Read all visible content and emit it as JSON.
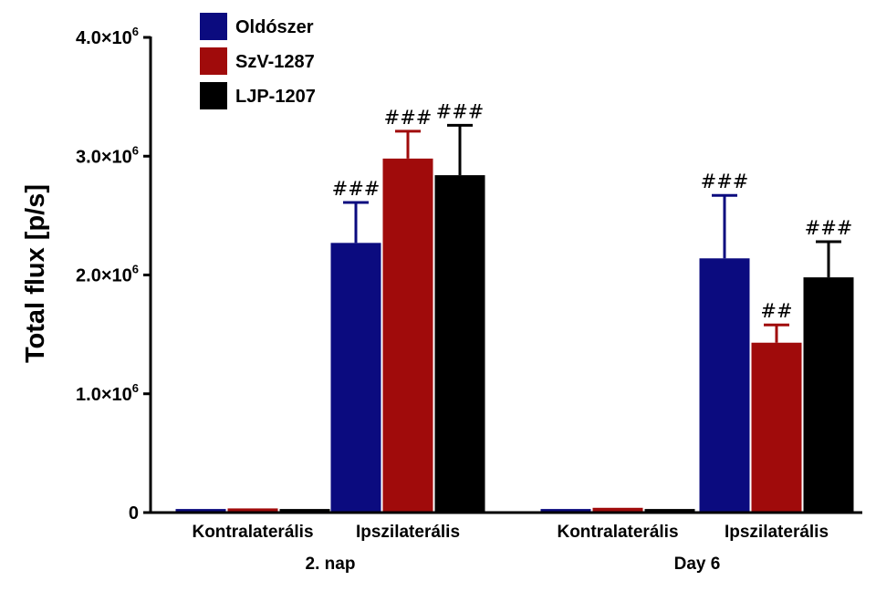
{
  "chart_data": {
    "type": "bar",
    "ylabel": "Total flux [p/s]",
    "ylim": [
      0,
      4000000
    ],
    "yticks": [
      {
        "value": 0,
        "mant": "0",
        "exp": ""
      },
      {
        "value": 1000000,
        "mant": "1.0×10",
        "exp": "6"
      },
      {
        "value": 2000000,
        "mant": "2.0×10",
        "exp": "6"
      },
      {
        "value": 3000000,
        "mant": "3.0×10",
        "exp": "6"
      },
      {
        "value": 4000000,
        "mant": "4.0×10",
        "exp": "6"
      }
    ],
    "legend_position": "top-left",
    "groups": [
      {
        "label": "2. nap",
        "categories": [
          "Kontralaterális",
          "Ipszilaterális"
        ]
      },
      {
        "label": "Day 6",
        "categories": [
          "Kontralaterális",
          "Ipszilaterális"
        ]
      }
    ],
    "series": [
      {
        "name": "Oldószer",
        "color": "#0b0b7f",
        "values": [
          30000,
          2270000,
          30000,
          2140000
        ],
        "errors": [
          0,
          340000,
          0,
          530000
        ],
        "annotations": [
          "",
          "###",
          "",
          "###"
        ]
      },
      {
        "name": "SzV-1287",
        "color": "#a00b0b",
        "values": [
          35000,
          2980000,
          40000,
          1430000
        ],
        "errors": [
          0,
          230000,
          0,
          150000
        ],
        "annotations": [
          "",
          "###",
          "",
          "##"
        ]
      },
      {
        "name": "LJP-1207",
        "color": "#000000",
        "values": [
          30000,
          2840000,
          30000,
          1980000
        ],
        "errors": [
          0,
          420000,
          0,
          300000
        ],
        "annotations": [
          "",
          "###",
          "",
          "###"
        ]
      }
    ]
  }
}
